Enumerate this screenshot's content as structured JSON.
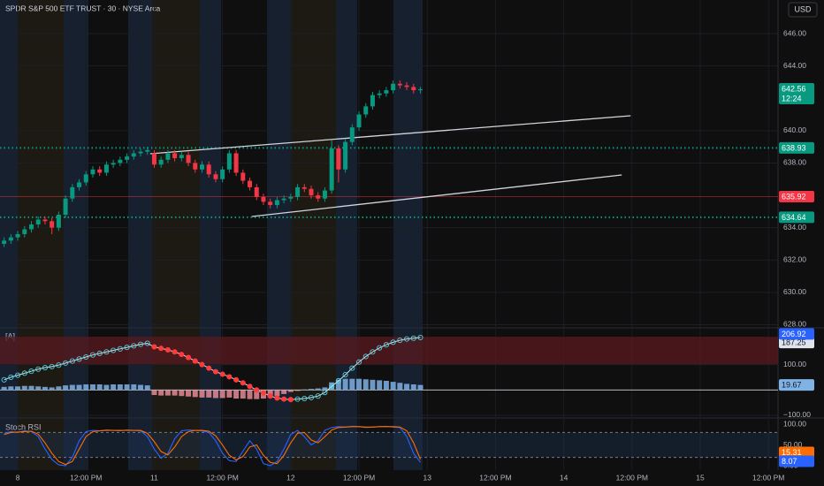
{
  "chart_data": [
    {
      "type": "candlestick",
      "title": "SPDR S&P 500 ETF TRUST · 30 · NYSE Arca",
      "currency": "USD",
      "up_color": "#089981",
      "down_color": "#f23645",
      "x": [
        0,
        1,
        2,
        3,
        4,
        5,
        6,
        7,
        8,
        9,
        10,
        11,
        12,
        13,
        14,
        15,
        16,
        17,
        18,
        19,
        20,
        21,
        22,
        23,
        24,
        25,
        26,
        27,
        28,
        29,
        30,
        31,
        32,
        33,
        34,
        35,
        36,
        37,
        38,
        39,
        40,
        41,
        42,
        43,
        44,
        45,
        46,
        47,
        48,
        49,
        50,
        51,
        52,
        53,
        54,
        55,
        56,
        57,
        58,
        59,
        60,
        61
      ],
      "open": [
        633.0,
        633.2,
        633.4,
        633.6,
        633.9,
        634.2,
        634.5,
        634.4,
        634.0,
        634.8,
        635.8,
        636.5,
        636.8,
        637.3,
        637.6,
        637.4,
        637.9,
        638.0,
        638.2,
        638.4,
        638.6,
        638.7,
        638.6,
        637.9,
        638.2,
        638.6,
        638.3,
        638.5,
        638.0,
        637.6,
        637.9,
        637.3,
        637.0,
        637.6,
        638.6,
        637.4,
        636.9,
        636.5,
        635.9,
        635.6,
        635.4,
        635.7,
        635.8,
        635.9,
        636.5,
        636.4,
        636.0,
        635.8,
        636.3,
        638.9,
        637.6,
        639.3,
        640.2,
        641.0,
        641.5,
        642.2,
        642.3,
        642.5,
        642.9,
        642.8,
        642.7,
        642.5
      ],
      "high": [
        633.4,
        633.6,
        633.8,
        634.1,
        634.4,
        634.7,
        634.7,
        634.6,
        635.0,
        636.0,
        636.7,
        637.0,
        637.5,
        637.8,
        637.8,
        638.1,
        638.2,
        638.4,
        638.6,
        638.8,
        638.9,
        639.0,
        638.8,
        638.4,
        638.8,
        638.8,
        638.7,
        638.7,
        638.2,
        638.1,
        638.1,
        637.5,
        637.8,
        638.8,
        638.8,
        637.6,
        637.1,
        636.7,
        636.1,
        635.8,
        635.9,
        636.0,
        636.1,
        636.7,
        636.7,
        636.6,
        636.2,
        636.5,
        639.4,
        639.1,
        639.5,
        640.4,
        641.2,
        641.7,
        642.4,
        642.5,
        642.7,
        643.1,
        643.1,
        643.0,
        642.9,
        642.7
      ],
      "low": [
        632.8,
        633.0,
        633.2,
        633.4,
        633.7,
        634.0,
        634.2,
        633.6,
        633.8,
        634.6,
        635.6,
        636.3,
        636.6,
        637.1,
        637.2,
        637.2,
        637.7,
        637.8,
        638.0,
        638.2,
        638.4,
        638.5,
        637.7,
        637.7,
        638.0,
        638.1,
        638.1,
        637.8,
        637.4,
        637.4,
        637.1,
        636.8,
        636.8,
        637.4,
        637.2,
        636.7,
        636.3,
        635.7,
        635.4,
        635.2,
        635.2,
        635.5,
        635.6,
        635.7,
        636.2,
        635.8,
        635.6,
        635.6,
        636.1,
        636.8,
        637.4,
        639.1,
        640.0,
        640.8,
        641.3,
        642.0,
        642.1,
        642.3,
        642.6,
        642.5,
        642.3,
        642.3
      ],
      "close": [
        633.2,
        633.4,
        633.6,
        633.9,
        634.2,
        634.5,
        634.4,
        634.0,
        634.8,
        635.8,
        636.5,
        636.8,
        637.3,
        637.6,
        637.4,
        637.9,
        638.0,
        638.2,
        638.4,
        638.6,
        638.7,
        638.8,
        637.9,
        638.2,
        638.6,
        638.3,
        638.5,
        638.0,
        637.6,
        637.9,
        637.3,
        637.0,
        637.6,
        638.6,
        637.4,
        636.9,
        636.5,
        635.9,
        635.6,
        635.4,
        635.7,
        635.8,
        635.9,
        636.5,
        636.4,
        636.0,
        635.8,
        636.3,
        638.9,
        637.6,
        639.3,
        640.2,
        641.0,
        641.5,
        642.2,
        642.3,
        642.5,
        642.9,
        642.8,
        642.7,
        642.5,
        642.56
      ],
      "xlim": [
        -0.6,
        113.4
      ],
      "xticks": [
        {
          "value": 2,
          "label": "8"
        },
        {
          "value": 12,
          "label": "12:00 PM"
        },
        {
          "value": 22,
          "label": "11"
        },
        {
          "value": 32,
          "label": "12:00 PM"
        },
        {
          "value": 42,
          "label": "12"
        },
        {
          "value": 52,
          "label": "12:00 PM"
        },
        {
          "value": 62,
          "label": "13"
        },
        {
          "value": 72,
          "label": "12:00 PM"
        },
        {
          "value": 82,
          "label": "14"
        },
        {
          "value": 92,
          "label": "12:00 PM"
        },
        {
          "value": 102,
          "label": "15"
        },
        {
          "value": 112,
          "label": "12:00 PM"
        }
      ],
      "ylim": [
        627.86,
        648.08
      ],
      "yticks": [
        {
          "value": 646,
          "label": "646.00"
        },
        {
          "value": 644,
          "label": "644.00"
        },
        {
          "value": 640,
          "label": "640.00"
        },
        {
          "value": 638,
          "label": "638.00"
        },
        {
          "value": 634,
          "label": "634.00"
        },
        {
          "value": 632,
          "label": "632.00"
        },
        {
          "value": 630,
          "label": "630.00"
        },
        {
          "value": 628,
          "label": "628.00"
        }
      ],
      "levels": [
        {
          "value": 638.93,
          "color": "#089981",
          "style": "dotted"
        },
        {
          "value": 635.92,
          "color": "#f23645",
          "style": "solid"
        },
        {
          "value": 634.64,
          "color": "#089981",
          "style": "dotted"
        }
      ],
      "last_price": {
        "value": 642.56,
        "countdown": "12:24"
      },
      "trendlines": [
        {
          "x": [
            21.4,
            91.8
          ],
          "y": [
            638.57,
            640.92
          ]
        },
        {
          "x": [
            36.3,
            90.5
          ],
          "y": [
            634.69,
            637.26
          ]
        }
      ]
    },
    {
      "type": "oscillator",
      "title": "[A]",
      "ylim": [
        -107,
        238
      ],
      "yticks": [
        {
          "value": 100,
          "label": "100.00"
        },
        {
          "value": -100,
          "label": "−100.00"
        }
      ],
      "zone": [
        100,
        210
      ],
      "line": {
        "values": [
          40,
          50,
          58,
          66,
          74,
          82,
          88,
          92,
          98,
          106,
          114,
          122,
          130,
          138,
          144,
          150,
          156,
          162,
          168,
          174,
          180,
          184,
          170,
          164,
          158,
          150,
          140,
          128,
          114,
          100,
          86,
          72,
          62,
          52,
          40,
          28,
          14,
          0,
          -12,
          -24,
          -32,
          -36,
          -38,
          -36,
          -34,
          -30,
          -24,
          -10,
          14,
          36,
          60,
          86,
          110,
          132,
          150,
          166,
          178,
          188,
          196,
          201,
          204,
          206.92
        ],
        "up_color": "#4dd0e1",
        "down_color": "#ff3b3b"
      },
      "histogram": {
        "values": [
          12,
          14,
          14,
          16,
          16,
          14,
          12,
          10,
          14,
          18,
          20,
          20,
          22,
          22,
          22,
          20,
          22,
          22,
          22,
          22,
          20,
          18,
          -20,
          -22,
          -22,
          -22,
          -24,
          -26,
          -28,
          -30,
          -30,
          -32,
          -32,
          -30,
          -34,
          -34,
          -36,
          -36,
          -34,
          -30,
          -24,
          -16,
          -8,
          -4,
          2,
          4,
          6,
          10,
          30,
          40,
          44,
          44,
          44,
          42,
          40,
          38,
          36,
          32,
          28,
          24,
          22,
          19.67
        ],
        "up_color": "#7fb2e5",
        "down_color": "#e58a95"
      },
      "level": 187.25
    },
    {
      "type": "stoch",
      "title": "Stoch RSI",
      "ylim": [
        -10.6,
        112.8
      ],
      "yticks": [
        {
          "value": 100,
          "label": "100.00"
        },
        {
          "value": 50,
          "label": "50.00"
        },
        {
          "value": 0,
          "label": "0.00"
        }
      ],
      "bands": [
        80,
        20
      ],
      "series": [
        {
          "color": "#2962ff",
          "values": [
            78,
            82,
            80,
            84,
            82,
            70,
            40,
            15,
            2,
            0,
            20,
            60,
            82,
            85,
            84,
            86,
            85,
            84,
            86,
            85,
            84,
            70,
            40,
            18,
            30,
            65,
            84,
            86,
            85,
            84,
            80,
            60,
            30,
            12,
            10,
            35,
            60,
            40,
            5,
            0,
            10,
            40,
            75,
            85,
            70,
            50,
            60,
            85,
            92,
            94,
            93,
            95,
            94,
            92,
            93,
            94,
            95,
            93,
            92,
            70,
            30,
            8.07
          ]
        },
        {
          "color": "#ff6d00",
          "values": [
            75,
            80,
            81,
            82,
            83,
            76,
            55,
            30,
            10,
            3,
            10,
            40,
            70,
            82,
            84,
            85,
            85,
            85,
            85,
            85,
            85,
            78,
            58,
            34,
            26,
            45,
            70,
            82,
            85,
            85,
            83,
            72,
            50,
            25,
            14,
            22,
            45,
            50,
            25,
            8,
            5,
            25,
            55,
            78,
            80,
            62,
            55,
            70,
            86,
            92,
            93,
            94,
            94,
            93,
            93,
            94,
            94,
            94,
            93,
            84,
            55,
            15.31
          ]
        }
      ]
    }
  ]
}
